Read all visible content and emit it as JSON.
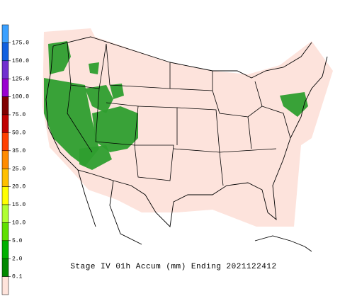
{
  "title": "Stage IV 01h Accum (mm) Ending 2021122412",
  "legend": {
    "labels": [
      "175.0",
      "150.0",
      "125.0",
      "100.0",
      "75.0",
      "50.0",
      "35.0",
      "25.0",
      "20.0",
      "15.0",
      "10.0",
      "5.0",
      "2.0",
      "0.1"
    ],
    "colors": [
      "#3aa0ff",
      "#1060e0",
      "#7030d0",
      "#9a00d0",
      "#800000",
      "#c00000",
      "#ff4000",
      "#ff8c00",
      "#ffc000",
      "#ffff00",
      "#b0ff30",
      "#60e000",
      "#00b000",
      "#008800",
      "#ffe4dc"
    ]
  }
}
